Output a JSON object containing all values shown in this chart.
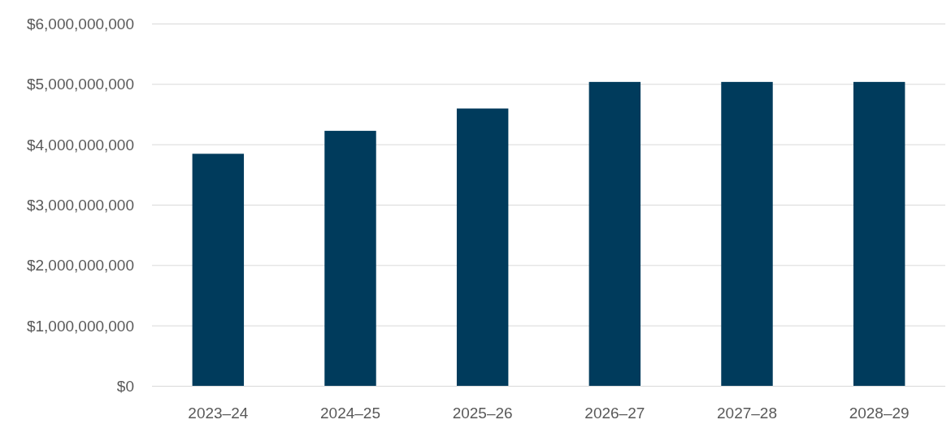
{
  "chart_data": {
    "type": "bar",
    "categories": [
      "2023–24",
      "2024–25",
      "2025–26",
      "2026–27",
      "2027–28",
      "2028–29"
    ],
    "values": [
      3850000000,
      4230000000,
      4600000000,
      5040000000,
      5040000000,
      5040000000
    ],
    "color": "#003b5c",
    "ylim": [
      0,
      6000000000
    ],
    "yticks": [
      {
        "value": 0,
        "label": "$0"
      },
      {
        "value": 1000000000,
        "label": "$1,000,000,000"
      },
      {
        "value": 2000000000,
        "label": "$2,000,000,000"
      },
      {
        "value": 3000000000,
        "label": "$3,000,000,000"
      },
      {
        "value": 4000000000,
        "label": "$4,000,000,000"
      },
      {
        "value": 5000000000,
        "label": "$5,000,000,000"
      },
      {
        "value": 6000000000,
        "label": "$6,000,000,000"
      }
    ],
    "grid": "y"
  }
}
